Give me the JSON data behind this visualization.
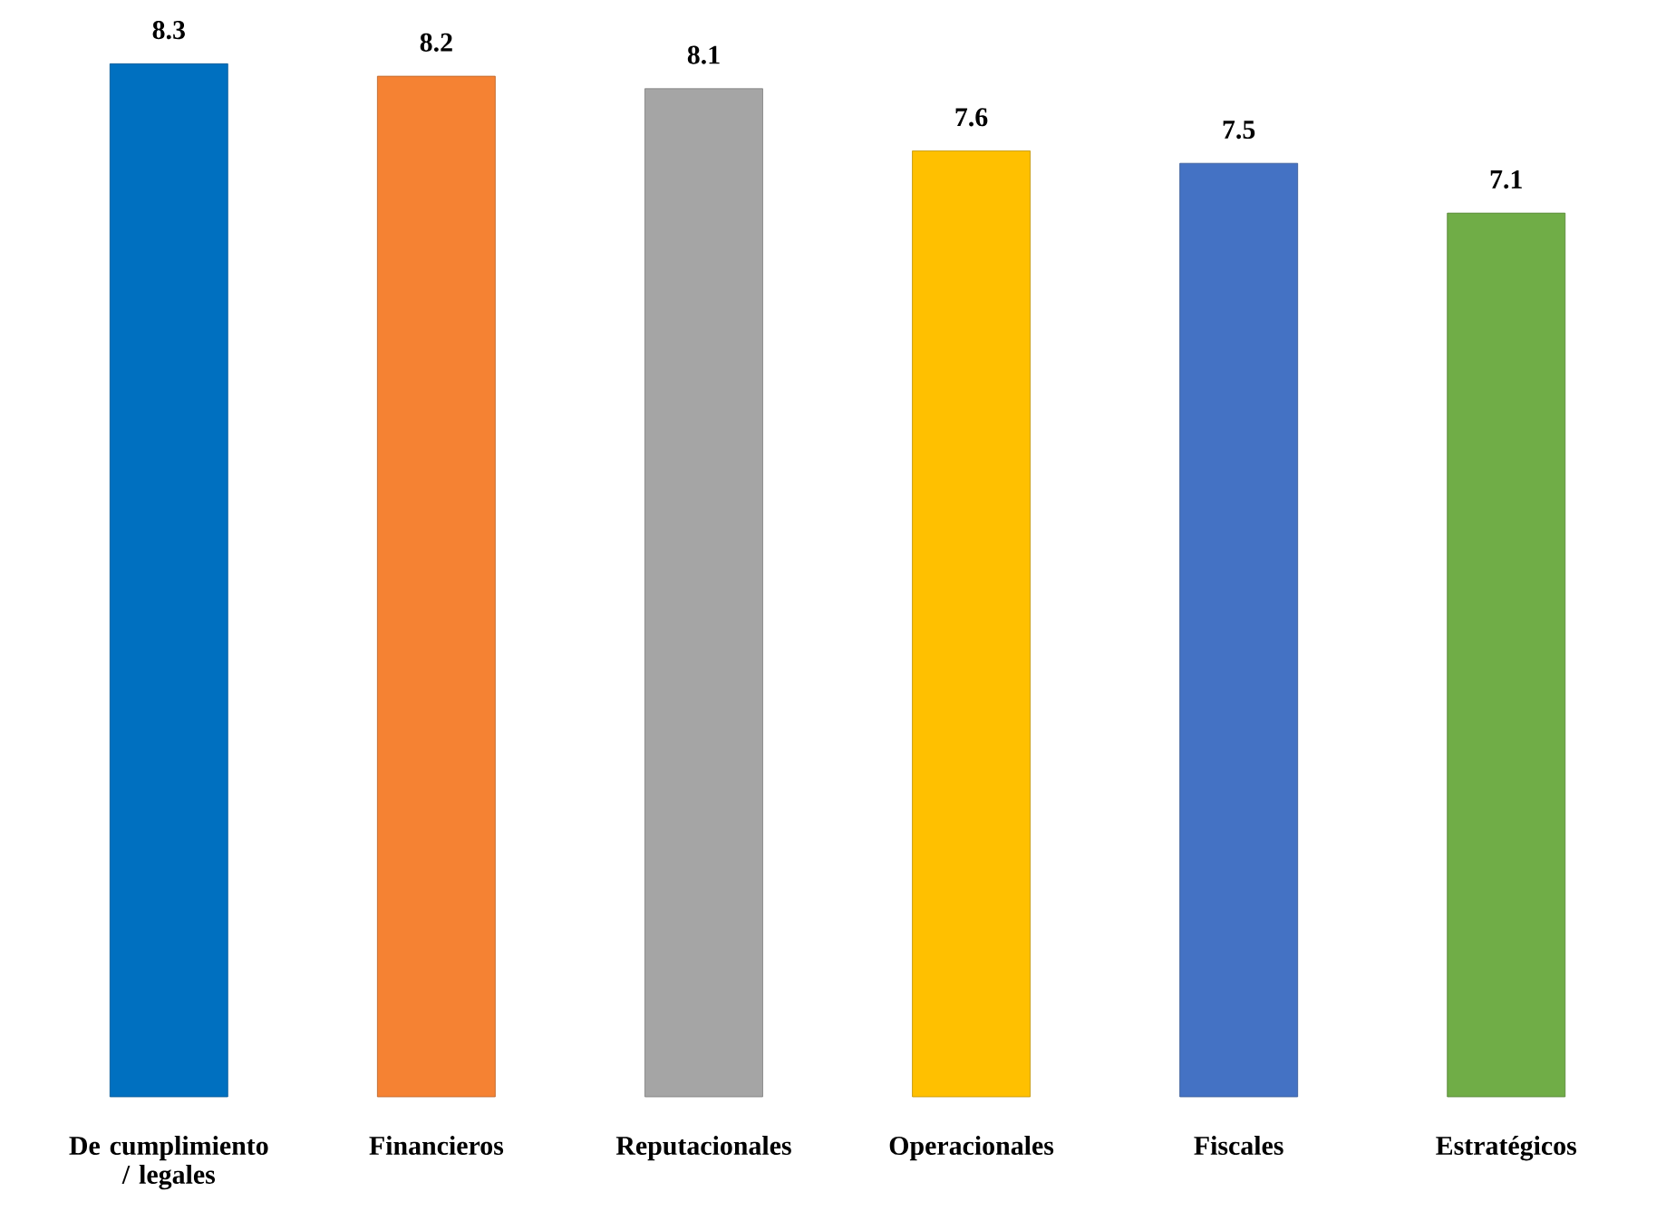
{
  "chart_data": {
    "type": "bar",
    "categories": [
      "De cumplimiento / legales",
      "Financieros",
      "Reputacionales",
      "Operacionales",
      "Fiscales",
      "Estratégicos"
    ],
    "values": [
      8.3,
      8.2,
      8.1,
      7.6,
      7.5,
      7.1
    ],
    "colors": [
      "#0070c0",
      "#f58233",
      "#a5a5a5",
      "#ffc000",
      "#4472c4",
      "#70ad47"
    ],
    "data_labels": true
  }
}
